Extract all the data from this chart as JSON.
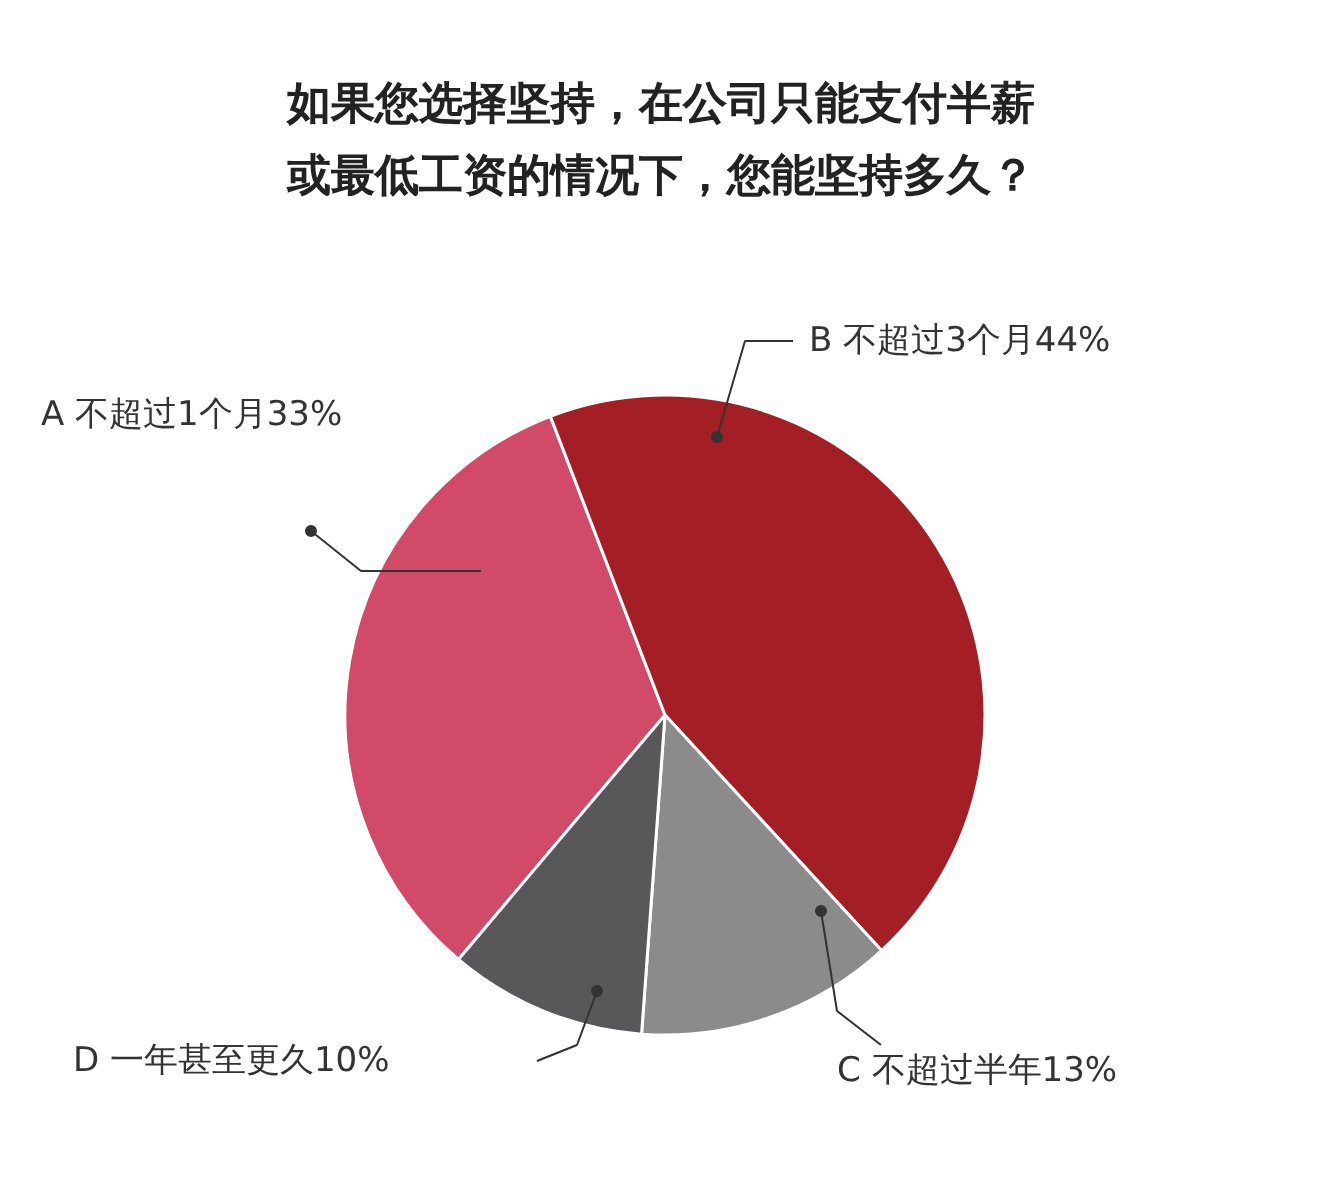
{
  "chart_data": {
    "type": "pie",
    "title": "如果您选择坚持，在公司只能支付半薪或最低工资的情况下，您能坚持多久？",
    "categories": [
      "A  不超过1个月",
      "B  不超过3个月",
      "C  不超过半年",
      "D  一年甚至更久"
    ],
    "values": [
      33,
      44,
      13,
      10
    ],
    "value_labels": [
      "33%",
      "44%",
      "13%",
      "10%"
    ],
    "colors": [
      "#d14b68",
      "#a31e25",
      "#8b8b8b",
      "#58585a"
    ]
  }
}
